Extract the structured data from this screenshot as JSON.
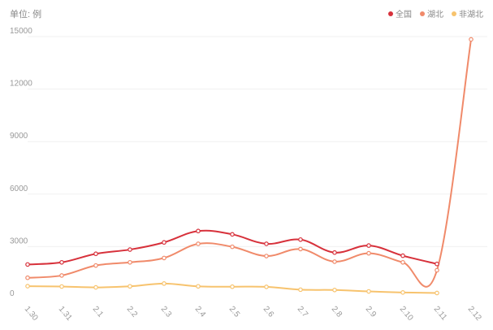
{
  "unit_label": "单位: 例",
  "colors": {
    "national": "#d7313b",
    "hubei": "#f08a6a",
    "outside": "#f7c36e",
    "grid": "#f0f0f0"
  },
  "chart_data": {
    "type": "line",
    "x": [
      "1.30",
      "1.31",
      "2.1",
      "2.2",
      "2.3",
      "2.4",
      "2.5",
      "2.6",
      "2.7",
      "2.8",
      "2.9",
      "2.10",
      "2.11",
      "2.12"
    ],
    "ylim": [
      0,
      15000
    ],
    "yticks": [
      0,
      3000,
      6000,
      9000,
      12000,
      15000
    ],
    "legend_position": "top-right",
    "grid": true,
    "series": [
      {
        "name": "全国",
        "color": "#d7313b",
        "values": [
          1980,
          2100,
          2590,
          2830,
          3240,
          3890,
          3700,
          3160,
          3400,
          2660,
          3060,
          2480,
          2010,
          null
        ]
      },
      {
        "name": "湖北",
        "color": "#f08a6a",
        "values": [
          1220,
          1350,
          1920,
          2100,
          2350,
          3160,
          2990,
          2460,
          2860,
          2140,
          2620,
          2100,
          1650,
          14840
        ]
      },
      {
        "name": "非湖北",
        "color": "#f7c36e",
        "values": [
          740,
          720,
          670,
          730,
          890,
          730,
          710,
          700,
          540,
          520,
          440,
          380,
          350,
          null
        ]
      }
    ]
  }
}
